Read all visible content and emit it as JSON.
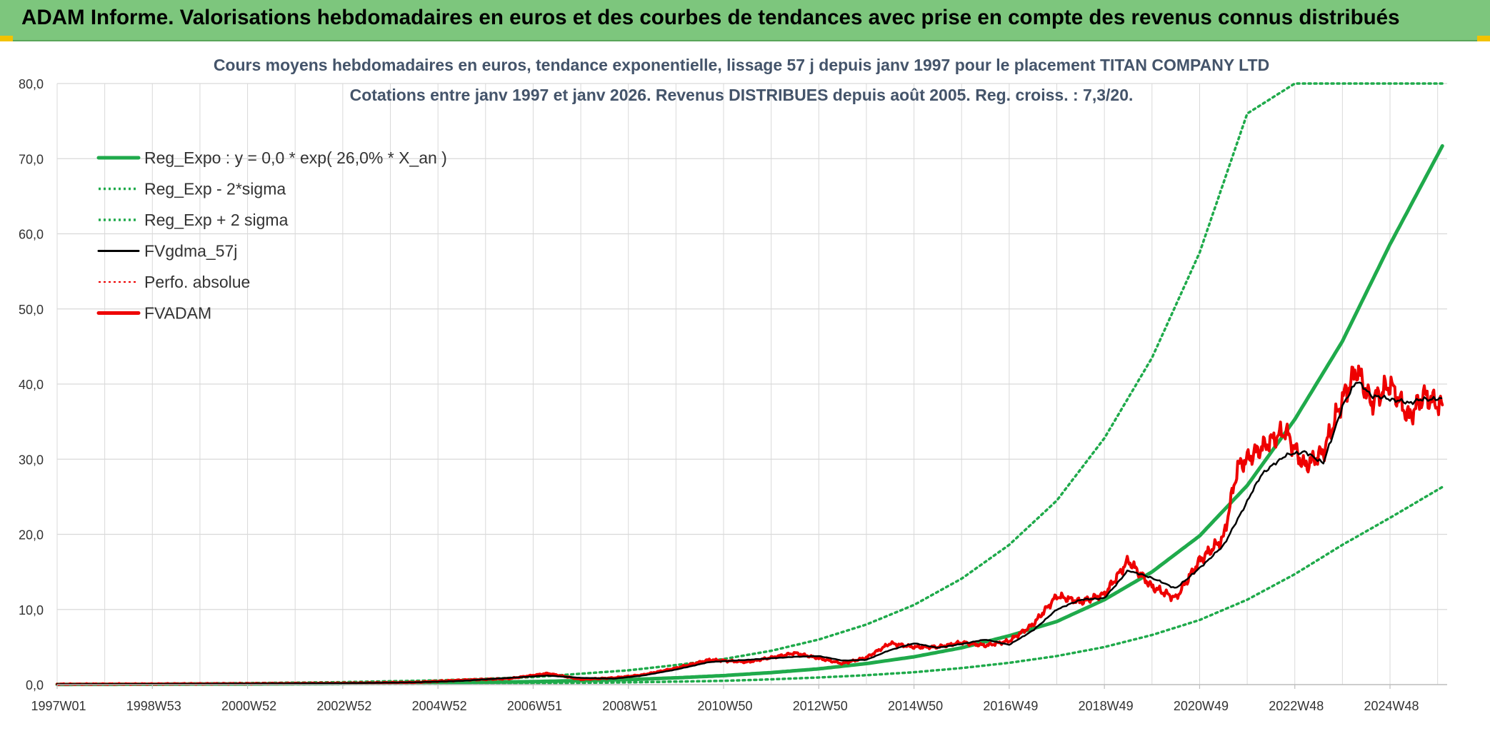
{
  "header": {
    "banner_title": "ADAM Informe. Valorisations hebdomadaires en euros et des courbes de tendances avec prise en compte des revenus connus distribués"
  },
  "colors": {
    "banner_bg": "#7dc67d",
    "reg_green": "#1faa4b",
    "fv_black": "#000000",
    "adam_red": "#ee0000",
    "grid": "#d9d9d9",
    "title_text": "#44546a"
  },
  "chart_data": {
    "type": "line",
    "title_line1": "Cours moyens hebdomadaires en euros, tendance exponentielle, lissage 57 j depuis janv 1997 pour le placement TITAN COMPANY LTD",
    "title_line2": "Cotations entre janv 1997 et janv 2026. Revenus DISTRIBUES depuis août 2005. Reg. croiss. : 7,3/20.",
    "xlabel": "",
    "ylabel": "",
    "x_tick_labels": [
      "1997W01",
      "1998W53",
      "2000W52",
      "2002W52",
      "2004W52",
      "2006W51",
      "2008W51",
      "2010W50",
      "2012W50",
      "2014W50",
      "2016W49",
      "2018W49",
      "2020W49",
      "2022W48",
      "2024W48"
    ],
    "x_tick_years": [
      1997.0,
      1999.0,
      2001.0,
      2003.0,
      2005.0,
      2007.0,
      2009.0,
      2011.0,
      2013.0,
      2015.0,
      2017.0,
      2019.0,
      2021.0,
      2023.0,
      2025.0
    ],
    "xlim": [
      1997.0,
      2026.2
    ],
    "ylim": [
      0,
      80
    ],
    "y_ticks": [
      0,
      10,
      20,
      30,
      40,
      50,
      60,
      70,
      80
    ],
    "y_tick_labels": [
      "0,0",
      "10,0",
      "20,0",
      "30,0",
      "40,0",
      "50,0",
      "60,0",
      "70,0",
      "80,0"
    ],
    "grid": true,
    "legend_position": "top-left",
    "legend": [
      {
        "label": "Reg_Expo : y = 0,0 * exp( 26,0% *  X_an )",
        "style": "thick-solid",
        "color": "#1faa4b"
      },
      {
        "label": "Reg_Exp - 2*sigma",
        "style": "dotted",
        "color": "#1faa4b"
      },
      {
        "label": "Reg_Exp + 2 sigma",
        "style": "dotted",
        "color": "#1faa4b"
      },
      {
        "label": "FVgdma_57j",
        "style": "solid",
        "color": "#000000"
      },
      {
        "label": "Perfo. absolue",
        "style": "dotted",
        "color": "#ee0000"
      },
      {
        "label": "FVADAM",
        "style": "thick-solid",
        "color": "#ee0000"
      }
    ],
    "series": [
      {
        "name": "Reg_Expo",
        "x": [
          1997,
          1999,
          2001,
          2003,
          2005,
          2007,
          2009,
          2010,
          2011,
          2012,
          2013,
          2014,
          2015,
          2016,
          2017,
          2018,
          2019,
          2020,
          2021,
          2022,
          2023,
          2024,
          2025,
          2026.1
        ],
        "y": [
          0.03,
          0.05,
          0.08,
          0.14,
          0.24,
          0.4,
          0.67,
          0.9,
          1.2,
          1.6,
          2.1,
          2.8,
          3.7,
          4.9,
          6.5,
          8.4,
          11.3,
          15.0,
          19.8,
          26.5,
          35.3,
          45.7,
          58.6,
          71.7
        ]
      },
      {
        "name": "Reg_Exp - 2*sigma",
        "x": [
          1997,
          1999,
          2001,
          2003,
          2005,
          2007,
          2009,
          2010,
          2011,
          2012,
          2013,
          2014,
          2015,
          2016,
          2017,
          2018,
          2019,
          2020,
          2021,
          2022,
          2023,
          2024,
          2025,
          2026.1
        ],
        "y": [
          0.01,
          0.02,
          0.04,
          0.06,
          0.1,
          0.17,
          0.3,
          0.4,
          0.5,
          0.7,
          0.95,
          1.25,
          1.65,
          2.2,
          2.9,
          3.8,
          5.0,
          6.6,
          8.6,
          11.3,
          14.7,
          18.6,
          22.2,
          26.3
        ]
      },
      {
        "name": "Reg_Exp + 2 sigma",
        "x": [
          1997,
          1999,
          2001,
          2003,
          2005,
          2007,
          2009,
          2010,
          2011,
          2012,
          2013,
          2014,
          2015,
          2016,
          2017,
          2018,
          2019,
          2020,
          2021,
          2022,
          2023,
          2024,
          2025,
          2026.1
        ],
        "y": [
          0.07,
          0.12,
          0.2,
          0.33,
          0.56,
          1.0,
          1.9,
          2.6,
          3.4,
          4.5,
          6.0,
          8.0,
          10.6,
          14.1,
          18.6,
          24.5,
          32.8,
          43.5,
          57.5,
          76.0,
          80,
          80,
          80,
          80
        ]
      },
      {
        "name": "FVgdma_57j",
        "x": [
          1997,
          1999,
          2001,
          2003,
          2004.5,
          2005.5,
          2006.5,
          2007.3,
          2008,
          2008.7,
          2009.3,
          2010,
          2010.7,
          2011.5,
          2012.5,
          2013,
          2013.5,
          2014,
          2014.5,
          2015,
          2015.5,
          2016,
          2016.5,
          2017,
          2017.5,
          2018,
          2018.5,
          2019,
          2019.5,
          2020,
          2020.5,
          2021,
          2021.5,
          2021.8,
          2022.3,
          2022.8,
          2023.2,
          2023.6,
          2024,
          2024.3,
          2024.6,
          2025,
          2025.4,
          2025.7,
          2026.1
        ],
        "y": [
          0.05,
          0.08,
          0.12,
          0.18,
          0.3,
          0.5,
          0.9,
          1.2,
          0.9,
          0.8,
          1.2,
          2.0,
          3.0,
          3.3,
          3.7,
          3.8,
          3.2,
          3.3,
          4.6,
          5.5,
          4.9,
          5.4,
          6.0,
          5.3,
          7.2,
          10.0,
          11.3,
          11.5,
          15.2,
          14.2,
          12.8,
          15.5,
          18.5,
          22.0,
          28.0,
          30.5,
          31.0,
          29.5,
          37.0,
          40.5,
          38.5,
          38.0,
          37.5,
          38.0,
          38.0
        ]
      },
      {
        "name": "FVADAM",
        "x": [
          1997,
          1999,
          2001,
          2003,
          2004.5,
          2005.5,
          2006.5,
          2007.3,
          2008,
          2008.7,
          2009.3,
          2010,
          2010.7,
          2011.5,
          2012.5,
          2013,
          2013.5,
          2014,
          2014.5,
          2015,
          2015.5,
          2016,
          2016.5,
          2017,
          2017.5,
          2018,
          2018.5,
          2019,
          2019.5,
          2020,
          2020.5,
          2021,
          2021.5,
          2021.8,
          2022.3,
          2022.8,
          2023.2,
          2023.6,
          2024,
          2024.3,
          2024.6,
          2025,
          2025.4,
          2025.7,
          2026.1
        ],
        "y": [
          0.05,
          0.08,
          0.12,
          0.18,
          0.3,
          0.6,
          0.8,
          1.5,
          0.7,
          0.9,
          1.3,
          2.2,
          3.3,
          3.0,
          4.2,
          3.5,
          2.8,
          3.6,
          5.5,
          5.0,
          5.0,
          5.6,
          5.2,
          5.8,
          8.0,
          11.8,
          11.0,
          12.0,
          16.5,
          13.0,
          11.5,
          16.5,
          19.5,
          29.0,
          31.5,
          33.8,
          29.0,
          31.0,
          38.0,
          42.0,
          37.5,
          40.0,
          35.5,
          38.5,
          37.0
        ]
      }
    ]
  }
}
